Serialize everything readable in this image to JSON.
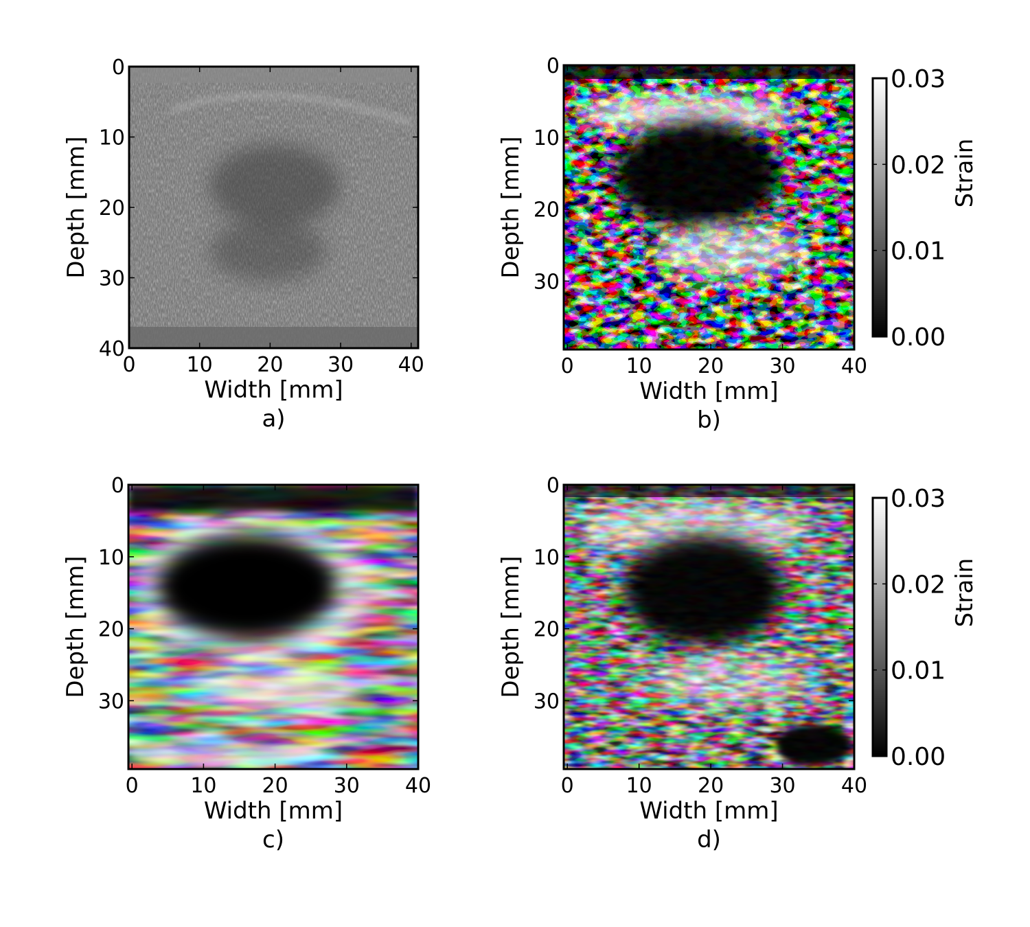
{
  "chart_data": [
    {
      "type": "heatmap",
      "panel_label": "a)",
      "image_kind": "B-mode ultrasound (grayscale)",
      "xlabel": "Width [mm]",
      "ylabel": "Depth [mm]",
      "xlim": [
        0,
        41
      ],
      "ylim": [
        40,
        0
      ],
      "xticks": [
        "0",
        "10",
        "20",
        "30",
        "40"
      ],
      "yticks": [
        "0",
        "10",
        "20",
        "30",
        "40"
      ],
      "colorbar": null
    },
    {
      "type": "heatmap",
      "panel_label": "b)",
      "image_kind": "strain map",
      "xlabel": "Width [mm]",
      "ylabel": "Depth [mm]",
      "xlim": [
        -0.5,
        40
      ],
      "ylim": [
        39.5,
        0
      ],
      "xticks": [
        "0",
        "10",
        "20",
        "30",
        "40"
      ],
      "yticks": [
        "0",
        "10",
        "20",
        "30"
      ],
      "colorbar": {
        "label": "Strain",
        "range": [
          0.0,
          0.03
        ],
        "ticks": [
          "0.00",
          "0.01",
          "0.02",
          "0.03"
        ]
      }
    },
    {
      "type": "heatmap",
      "panel_label": "c)",
      "image_kind": "strain map",
      "xlabel": "Width [mm]",
      "ylabel": "Depth [mm]",
      "xlim": [
        -0.5,
        40
      ],
      "ylim": [
        39.5,
        0
      ],
      "xticks": [
        "0",
        "10",
        "20",
        "30",
        "40"
      ],
      "yticks": [
        "0",
        "10",
        "20",
        "30"
      ],
      "colorbar": null
    },
    {
      "type": "heatmap",
      "panel_label": "d)",
      "image_kind": "strain map",
      "xlabel": "Width [mm]",
      "ylabel": "Depth [mm]",
      "xlim": [
        -0.5,
        40
      ],
      "ylim": [
        39.5,
        0
      ],
      "xticks": [
        "0",
        "10",
        "20",
        "30",
        "40"
      ],
      "yticks": [
        "0",
        "10",
        "20",
        "30"
      ],
      "colorbar": {
        "label": "Strain",
        "range": [
          0.0,
          0.03
        ],
        "ticks": [
          "0.00",
          "0.01",
          "0.02",
          "0.03"
        ]
      }
    }
  ],
  "colors": {
    "frame": "#000000",
    "background": "#ffffff",
    "colormap": "gray"
  }
}
